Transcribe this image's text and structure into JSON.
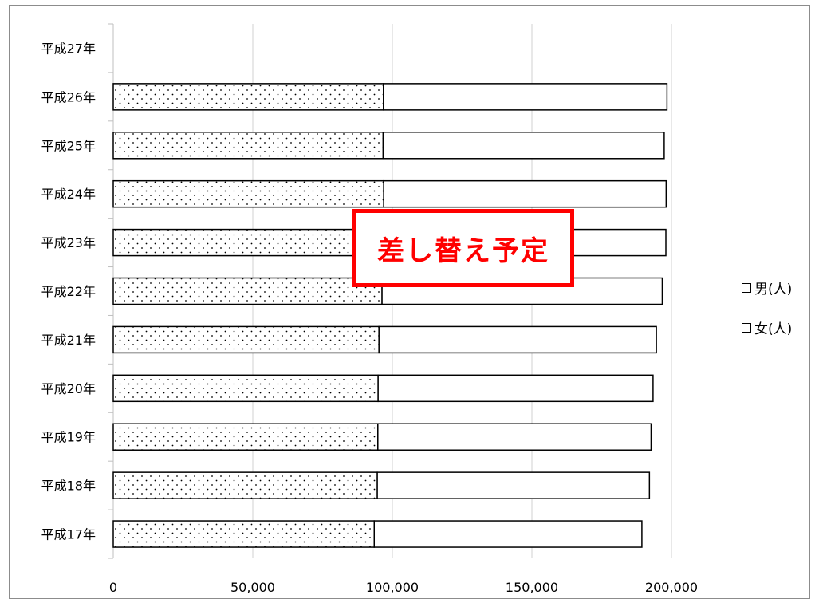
{
  "chart_data": {
    "type": "bar",
    "orientation": "horizontal",
    "stacked": true,
    "categories": [
      "平成17年",
      "平成18年",
      "平成19年",
      "平成20年",
      "平成21年",
      "平成22年",
      "平成23年",
      "平成24年",
      "平成25年",
      "平成26年",
      "平成27年"
    ],
    "series": [
      {
        "name": "女(人)",
        "pattern": "dots",
        "values": [
          93500,
          94600,
          94800,
          94900,
          95200,
          96300,
          96800,
          96900,
          96700,
          96800,
          null
        ]
      },
      {
        "name": "男(人)",
        "pattern": "solid-white",
        "values": [
          95900,
          97500,
          97900,
          98500,
          99400,
          100400,
          101200,
          101200,
          100700,
          101600,
          null
        ]
      }
    ],
    "xlim": [
      0,
      200000
    ],
    "xticks": [
      0,
      50000,
      100000,
      150000,
      200000
    ],
    "xtick_labels": [
      "0",
      "50,000",
      "100,000",
      "150,000",
      "200,000"
    ],
    "grid": true,
    "legend_position": "right",
    "legend": [
      "男(人)",
      "女(人)"
    ]
  },
  "overlay": {
    "stamp_text": "差し替え予定",
    "stamp_color": "#ff0000"
  }
}
